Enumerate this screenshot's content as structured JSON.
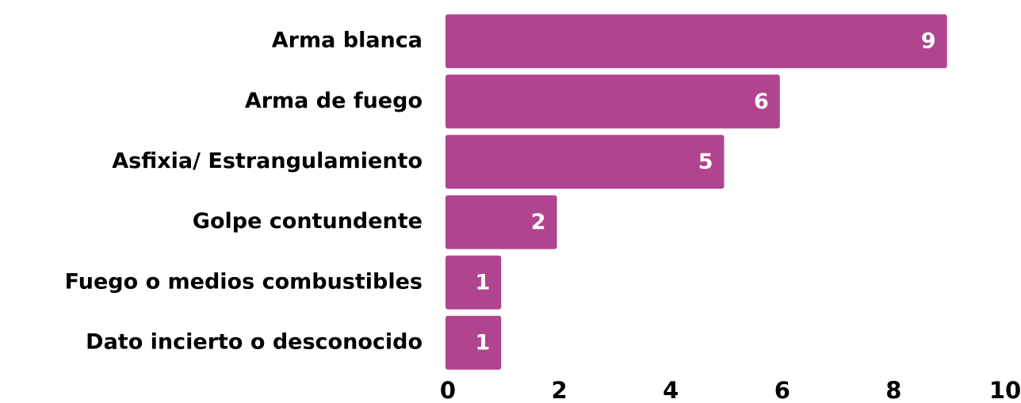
{
  "chart_data": {
    "type": "bar",
    "orientation": "horizontal",
    "categories": [
      "Arma blanca",
      "Arma de fuego",
      "Asfixia/ Estrangulamiento",
      "Golpe contundente",
      "Fuego o medios combustibles",
      "Dato incierto o desconocido"
    ],
    "values": [
      9,
      6,
      5,
      2,
      1,
      1
    ],
    "color": "#b0448f",
    "xlim": [
      0,
      10
    ],
    "xticks": [
      0,
      2,
      4,
      6,
      8,
      10
    ],
    "grid": false
  }
}
